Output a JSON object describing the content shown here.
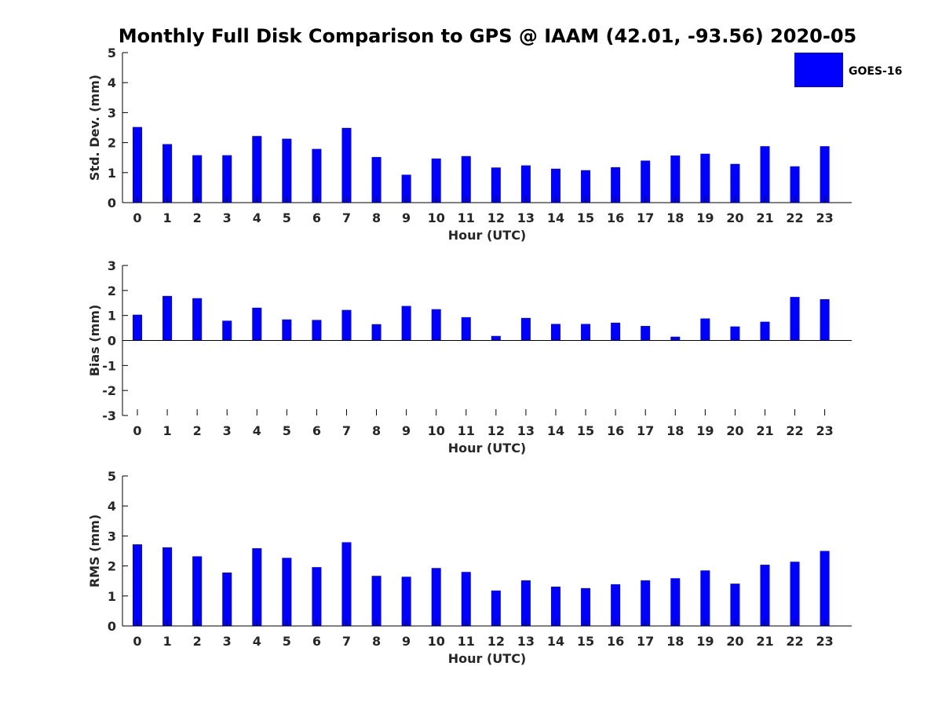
{
  "chart_data": {
    "title": "Monthly Full Disk Comparison to GPS @ IAAM (42.01, -93.56) 2020-05",
    "legend": {
      "label": "GOES-16",
      "placement": "top-right"
    },
    "series_color": "#0000ff",
    "categories": [
      "0",
      "1",
      "2",
      "3",
      "4",
      "5",
      "6",
      "7",
      "8",
      "9",
      "10",
      "11",
      "12",
      "13",
      "14",
      "15",
      "16",
      "17",
      "18",
      "19",
      "20",
      "21",
      "22",
      "23"
    ],
    "panels": [
      {
        "type": "bar",
        "ylabel": "Std. Dev. (mm)",
        "xlabel": "Hour (UTC)",
        "ylim": [
          0,
          5
        ],
        "yticks": [
          "0",
          "1",
          "2",
          "3",
          "4",
          "5"
        ],
        "values": [
          2.52,
          1.95,
          1.58,
          1.58,
          2.22,
          2.13,
          1.79,
          2.49,
          1.52,
          0.93,
          1.47,
          1.55,
          1.17,
          1.24,
          1.13,
          1.08,
          1.18,
          1.4,
          1.57,
          1.63,
          1.29,
          1.88,
          1.21,
          1.88
        ]
      },
      {
        "type": "bar",
        "ylabel": "Bias (mm)",
        "xlabel": "Hour (UTC)",
        "ylim": [
          -3,
          3
        ],
        "yticks": [
          "-3",
          "-2",
          "-1",
          "0",
          "1",
          "2",
          "3"
        ],
        "values": [
          1.03,
          1.78,
          1.69,
          0.79,
          1.31,
          0.84,
          0.82,
          1.22,
          0.65,
          1.38,
          1.25,
          0.93,
          0.18,
          0.9,
          0.66,
          0.66,
          0.71,
          0.58,
          0.15,
          0.88,
          0.56,
          0.75,
          1.74,
          1.65
        ]
      },
      {
        "type": "bar",
        "ylabel": "RMS (mm)",
        "xlabel": "Hour (UTC)",
        "ylim": [
          0,
          5
        ],
        "yticks": [
          "0",
          "1",
          "2",
          "3",
          "4",
          "5"
        ],
        "values": [
          2.72,
          2.62,
          2.32,
          1.78,
          2.59,
          2.27,
          1.96,
          2.79,
          1.67,
          1.64,
          1.93,
          1.8,
          1.18,
          1.52,
          1.31,
          1.26,
          1.39,
          1.52,
          1.59,
          1.85,
          1.41,
          2.04,
          2.14,
          2.5
        ]
      }
    ]
  }
}
